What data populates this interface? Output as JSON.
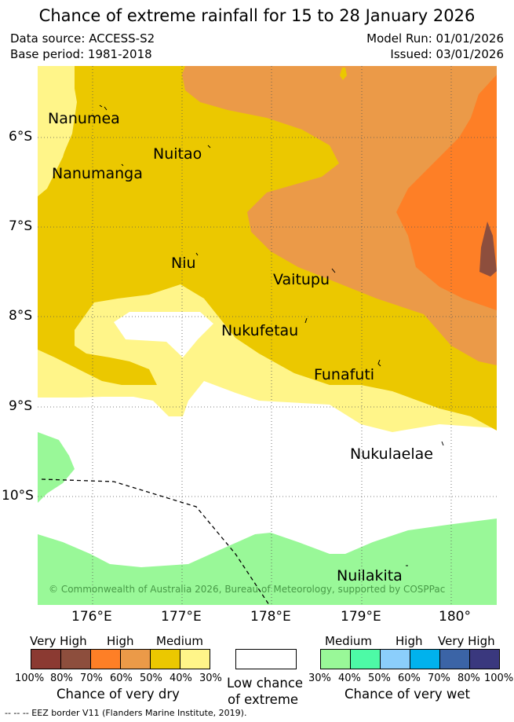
{
  "title": "Chance of extreme rainfall for 15 to 28 January 2026",
  "meta": {
    "data_source": "Data source: ACCESS-S2",
    "base_period": "Base period: 1981-2018",
    "model_run": "Model Run: 01/01/2026",
    "issued": "Issued: 03/01/2026"
  },
  "axes": {
    "x_ticks": [
      "176°E",
      "177°E",
      "178°E",
      "179°E",
      "180°"
    ],
    "y_ticks": [
      "6°S",
      "7°S",
      "8°S",
      "9°S",
      "10°S"
    ]
  },
  "islands": {
    "nanumea": "Nanumea",
    "nuitao": "Nuitao",
    "nanumanga": "Nanumanga",
    "niu": "Niu",
    "vaitupu": "Vaitupu",
    "nukufetau": "Nukufetau",
    "funafuti": "Funafuti",
    "nukulaelae": "Nukulaelae",
    "nuilakita": "Nuilakita"
  },
  "copyright": "© Commonwealth of Australia 2026, Bureau of Meteorology, supported by COSPPac",
  "legend": {
    "dry": {
      "labels": {
        "very_high": "Very High",
        "high": "High",
        "medium": "Medium"
      },
      "pcts": [
        "100%",
        "80%",
        "70%",
        "60%",
        "50%",
        "40%",
        "30%"
      ],
      "caption": "Chance of very dry",
      "colors": [
        "#8b3a32",
        "#8d4e3d",
        "#fe7f26",
        "#eb9a48",
        "#ebc800",
        "#fff589"
      ]
    },
    "low": {
      "line1": "Low chance",
      "line2": "of extreme"
    },
    "wet": {
      "labels": {
        "medium": "Medium",
        "high": "High",
        "very_high": "Very High"
      },
      "pcts": [
        "30%",
        "40%",
        "50%",
        "60%",
        "70%",
        "80%",
        "100%"
      ],
      "caption": "Chance of very wet",
      "colors": [
        "#99f898",
        "#4dfaa6",
        "#8bcefb",
        "#00b2ed",
        "#3b64a6",
        "#3a387e"
      ]
    }
  },
  "eez_note": "-- -- -- EEZ border V11 (Flanders Marine Institute, 2019)."
}
